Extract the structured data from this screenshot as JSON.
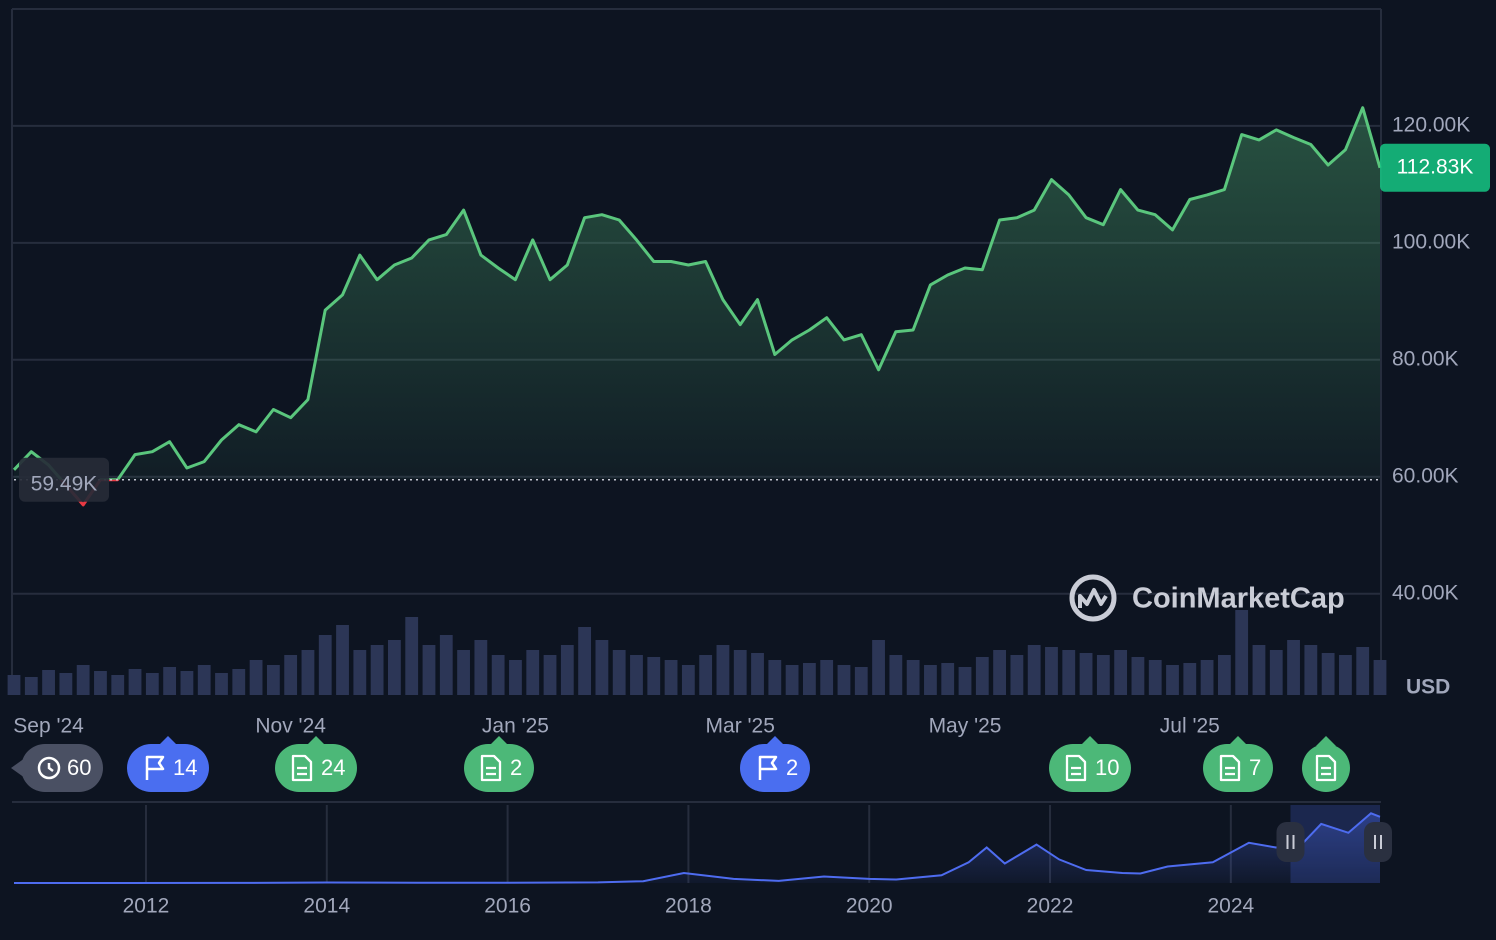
{
  "chart_data": {
    "type": "line",
    "categories": [
      null,
      null,
      "Sep '24",
      null,
      null,
      null,
      null,
      null,
      null,
      null,
      null,
      null,
      null,
      null,
      null,
      null,
      "Nov '24",
      null,
      null,
      null,
      null,
      null,
      null,
      null,
      null,
      null,
      null,
      null,
      null,
      "Jan '25",
      null,
      null,
      null,
      null,
      null,
      null,
      null,
      null,
      null,
      null,
      null,
      null,
      "Mar '25",
      null,
      null,
      null,
      null,
      null,
      null,
      null,
      null,
      null,
      null,
      null,
      null,
      "May '25",
      null,
      null,
      null,
      null,
      null,
      null,
      null,
      null,
      null,
      null,
      null,
      null,
      "Jul '25",
      null,
      null,
      null,
      null,
      null,
      null,
      null,
      null,
      null,
      null,
      null
    ],
    "values": [
      61200,
      64300,
      62000,
      58600,
      55200,
      59500,
      59500,
      63800,
      64300,
      66000,
      61500,
      62600,
      66300,
      68900,
      67700,
      71500,
      70100,
      73200,
      88500,
      91100,
      97900,
      93700,
      96200,
      97400,
      100500,
      101400,
      105600,
      97900,
      95700,
      93700,
      100500,
      93700,
      96200,
      104300,
      104800,
      103900,
      100500,
      96800,
      96800,
      96200,
      96800,
      90300,
      86000,
      90300,
      80900,
      83400,
      85100,
      87200,
      83400,
      84300,
      78300,
      84800,
      85100,
      92800,
      94500,
      95700,
      95400,
      103900,
      104300,
      105600,
      110800,
      108200,
      104300,
      103100,
      109100,
      105600,
      104800,
      102200,
      107400,
      108200,
      109100,
      118500,
      117600,
      119300,
      118000,
      116800,
      113300,
      115900,
      123100,
      112830
    ],
    "color": "#5ac67d",
    "below_color": "#ea3943",
    "ylim": [
      22700,
      139800
    ],
    "yticks": [
      {
        "value": 40000,
        "label": "40.00K"
      },
      {
        "value": 60000,
        "label": "60.00K"
      },
      {
        "value": 80000,
        "label": "80.00K"
      },
      {
        "value": 100000,
        "label": "100.00K"
      },
      {
        "value": 120000,
        "label": "120.00K"
      }
    ],
    "grid": true,
    "reference": {
      "value": 59490,
      "label": "59.49K"
    },
    "last_price": {
      "value": 112830,
      "label": "112.83K"
    },
    "currency": "USD",
    "watermark": "CoinMarketCap",
    "volume": [
      20,
      18,
      25,
      22,
      30,
      24,
      20,
      26,
      22,
      28,
      24,
      30,
      22,
      26,
      35,
      30,
      40,
      45,
      60,
      70,
      45,
      50,
      55,
      78,
      50,
      60,
      45,
      55,
      40,
      35,
      45,
      40,
      50,
      68,
      55,
      45,
      40,
      38,
      35,
      30,
      40,
      50,
      45,
      42,
      35,
      30,
      32,
      35,
      30,
      28,
      55,
      40,
      35,
      30,
      32,
      28,
      38,
      45,
      40,
      50,
      48,
      45,
      42,
      40,
      45,
      38,
      35,
      30,
      32,
      35,
      40,
      85,
      50,
      45,
      55,
      50,
      42,
      40,
      48,
      35
    ],
    "volume_color": "#2c3656",
    "events": [
      {
        "kind": "history",
        "label": "60"
      },
      {
        "kind": "flag",
        "label": "14"
      },
      {
        "kind": "doc",
        "label": "24"
      },
      {
        "kind": "doc",
        "label": "2"
      },
      {
        "kind": "flag",
        "label": "2"
      },
      {
        "kind": "doc",
        "label": "10"
      },
      {
        "kind": "doc",
        "label": "7"
      },
      {
        "kind": "doc"
      }
    ],
    "navigator": {
      "type": "line",
      "x": [
        2010.54,
        2013,
        2014,
        2015,
        2016,
        2017,
        2017.5,
        2017.95,
        2018.5,
        2019,
        2019.5,
        2020,
        2020.3,
        2020.8,
        2021.1,
        2021.3,
        2021.5,
        2021.85,
        2022.1,
        2022.4,
        2022.8,
        2023,
        2023.3,
        2023.8,
        2024.2,
        2024.5,
        2024.8,
        2025.0,
        2025.3,
        2025.55,
        2025.65
      ],
      "values": [
        0,
        100,
        800,
        300,
        400,
        1000,
        3000,
        17000,
        7000,
        3500,
        11000,
        7000,
        6000,
        13000,
        35000,
        60000,
        33000,
        65000,
        40000,
        22000,
        17000,
        16000,
        28000,
        35000,
        68000,
        60000,
        68000,
        100000,
        85000,
        118000,
        112000
      ],
      "xlim": [
        2010.54,
        2025.65
      ],
      "xticks": [
        2012,
        2014,
        2016,
        2018,
        2020,
        2022,
        2024
      ],
      "ylim": [
        0,
        132000
      ],
      "selection": [
        2024.66,
        2025.65
      ],
      "color": "#4e6cf0"
    }
  }
}
